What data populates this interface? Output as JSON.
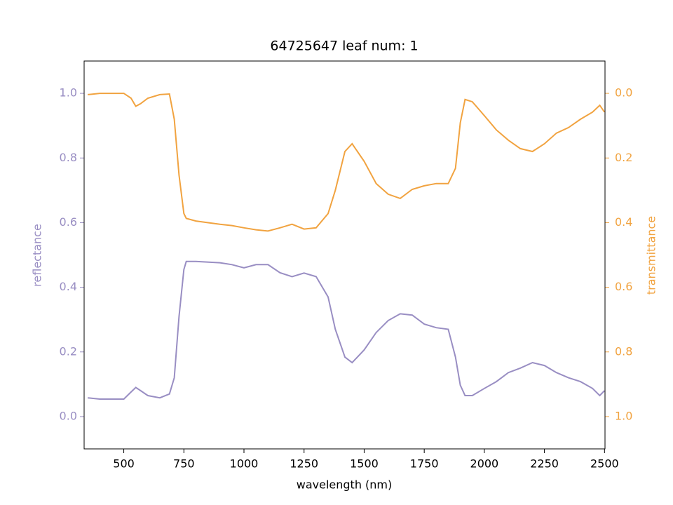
{
  "chart_data": {
    "type": "line",
    "title": "64725647 leaf num: 1",
    "xlabel": "wavelength (nm)",
    "x": [
      350,
      400,
      500,
      530,
      550,
      570,
      600,
      650,
      690,
      710,
      730,
      750,
      760,
      800,
      900,
      950,
      1000,
      1050,
      1100,
      1150,
      1200,
      1250,
      1300,
      1350,
      1380,
      1420,
      1450,
      1500,
      1550,
      1600,
      1650,
      1700,
      1750,
      1800,
      1850,
      1880,
      1900,
      1920,
      1950,
      2000,
      2050,
      2100,
      2150,
      2200,
      2250,
      2300,
      2350,
      2400,
      2450,
      2480,
      2500
    ],
    "series": [
      {
        "name": "reflectance",
        "color": "#998ec3",
        "values": [
          0.058,
          0.054,
          0.054,
          0.076,
          0.09,
          0.08,
          0.065,
          0.058,
          0.07,
          0.12,
          0.31,
          0.455,
          0.48,
          0.48,
          0.476,
          0.47,
          0.46,
          0.47,
          0.47,
          0.445,
          0.433,
          0.444,
          0.433,
          0.37,
          0.27,
          0.184,
          0.167,
          0.206,
          0.26,
          0.297,
          0.318,
          0.314,
          0.286,
          0.275,
          0.27,
          0.184,
          0.097,
          0.065,
          0.065,
          0.087,
          0.108,
          0.136,
          0.15,
          0.167,
          0.158,
          0.136,
          0.12,
          0.108,
          0.087,
          0.065,
          0.08
        ]
      },
      {
        "name": "transmittance",
        "color": "#f1a340",
        "axis": "y2",
        "values": [
          0.004,
          0.0,
          0.0,
          0.015,
          0.04,
          0.032,
          0.015,
          0.004,
          0.002,
          0.08,
          0.253,
          0.372,
          0.387,
          0.395,
          0.405,
          0.409,
          0.416,
          0.422,
          0.426,
          0.416,
          0.405,
          0.42,
          0.416,
          0.372,
          0.3,
          0.18,
          0.156,
          0.21,
          0.279,
          0.312,
          0.325,
          0.297,
          0.286,
          0.279,
          0.279,
          0.232,
          0.091,
          0.019,
          0.026,
          0.069,
          0.113,
          0.145,
          0.171,
          0.18,
          0.156,
          0.123,
          0.106,
          0.08,
          0.058,
          0.037,
          0.058
        ]
      }
    ],
    "xlim": [
      335,
      2502
    ],
    "xticks": [
      500,
      750,
      1000,
      1250,
      1500,
      1750,
      2000,
      2250,
      2500
    ],
    "ylim": [
      -0.1,
      1.1
    ],
    "yticks": [
      {
        "value": 0,
        "label": "0.0"
      },
      {
        "value": 0.2,
        "label": "0.2"
      },
      {
        "value": 0.4,
        "label": "0.4"
      },
      {
        "value": 0.6,
        "label": "0.6"
      },
      {
        "value": 0.8,
        "label": "0.8"
      },
      {
        "value": 1,
        "label": "1.0"
      }
    ],
    "y2lim": [
      1.1,
      -0.1
    ],
    "y2ticks": [
      {
        "value": 0,
        "label": "0.0"
      },
      {
        "value": 0.2,
        "label": "0.2"
      },
      {
        "value": 0.4,
        "label": "0.4"
      },
      {
        "value": 0.6,
        "label": "0.6"
      },
      {
        "value": 0.8,
        "label": "0.8"
      },
      {
        "value": 1,
        "label": "1.0"
      }
    ]
  }
}
